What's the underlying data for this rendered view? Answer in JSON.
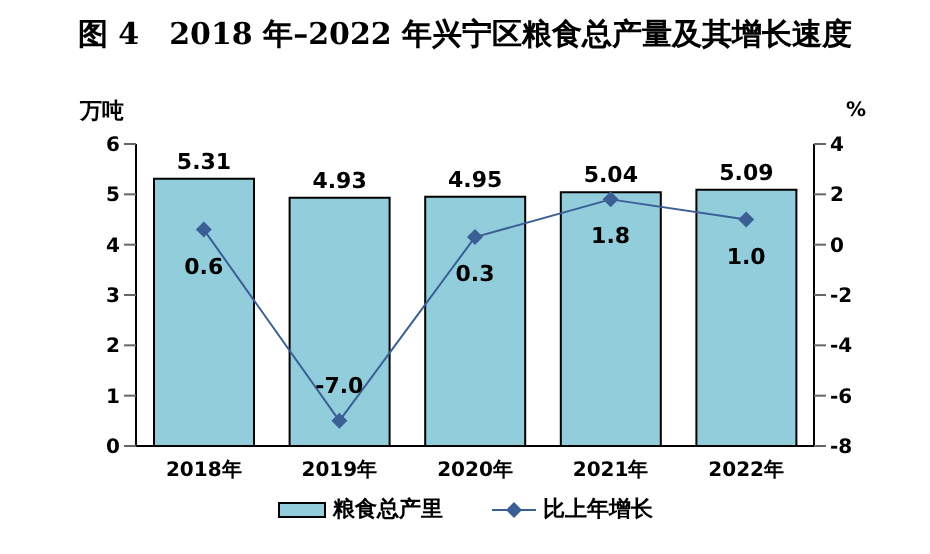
{
  "chart_data": {
    "type": "bar",
    "title": "图 4　2018 年–2022 年兴宁区粮食总产量及其增长速度",
    "ylabel": "万吨",
    "y2label": "%",
    "categories": [
      "2018年",
      "2019年",
      "2020年",
      "2021年",
      "2022年"
    ],
    "series": [
      {
        "name": "粮食总产里",
        "color": "#92cddc",
        "values": [
          5.31,
          4.93,
          4.95,
          5.04,
          5.09
        ]
      },
      {
        "name": "比上年增长",
        "type": "line",
        "axis": "y2",
        "color": "#3b5f95",
        "marker": "diamond",
        "values": [
          0.6,
          -7.0,
          0.3,
          1.8,
          1.0
        ],
        "value_labels": [
          "0.6",
          "-7.0",
          "0.3",
          "1.8",
          "1.0"
        ]
      }
    ],
    "ylim": [
      0,
      6
    ],
    "yticks": [
      0,
      1,
      2,
      3,
      4,
      5,
      6
    ],
    "y2lim": [
      -8,
      4
    ],
    "y2ticks": [
      -8,
      -6,
      -4,
      -2,
      0,
      2,
      4
    ],
    "data_labels": true,
    "legend": "bottom",
    "grid": false
  }
}
